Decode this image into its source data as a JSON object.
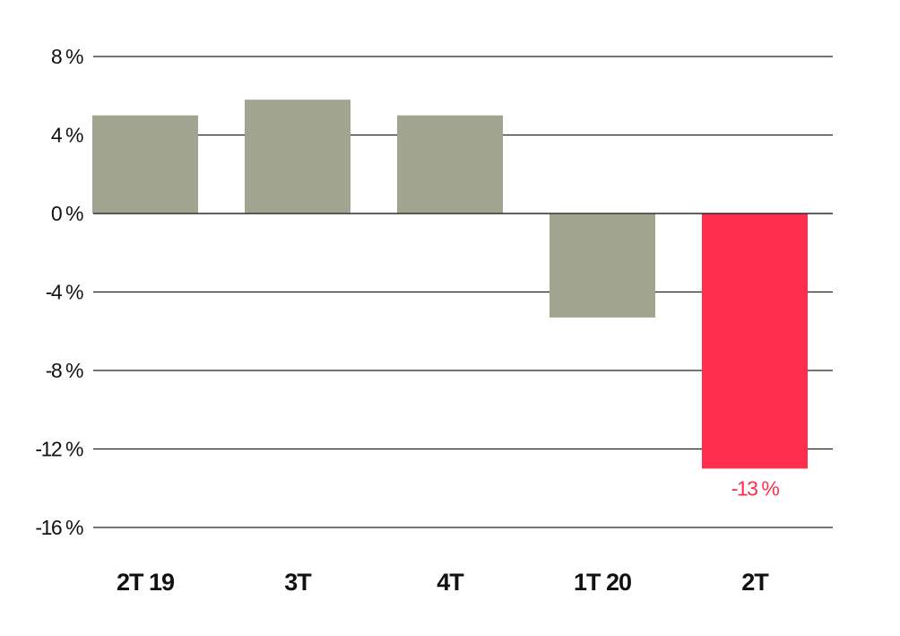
{
  "chart_data": {
    "type": "bar",
    "categories": [
      "2T 19",
      "3T",
      "4T",
      "1T 20",
      "2T"
    ],
    "values": [
      5.0,
      5.8,
      5.0,
      -5.3,
      -13.0
    ],
    "ylim": [
      -16,
      8
    ],
    "yticks": [
      8,
      4,
      0,
      -4,
      -8,
      -12,
      -16
    ],
    "ytick_labels": [
      "8 %",
      "4 %",
      "0 %",
      "-4 %",
      "-8 %",
      "-12 %",
      "-16 %"
    ],
    "grid": true,
    "highlight_index": 4,
    "data_labels": [
      {
        "index": 4,
        "text": "-13 %"
      }
    ],
    "colors": {
      "bar": "#a1a48f",
      "highlight": "#ff2d4d",
      "grid": "#222222",
      "text": "#111111"
    }
  }
}
